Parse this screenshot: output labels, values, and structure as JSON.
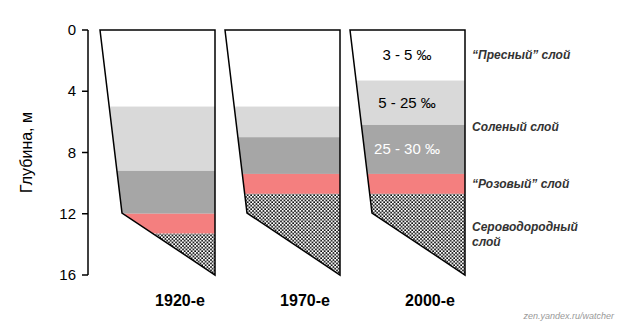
{
  "chart_data": {
    "type": "bar",
    "stacked": true,
    "categories": [
      "1920-е",
      "1970-е",
      "2000-е"
    ],
    "y_label": "Глубина, м",
    "ylim": [
      0,
      16
    ],
    "yticks": [
      0,
      4,
      8,
      12,
      16
    ],
    "source": "zen.yandex.ru/watcher",
    "series": [
      {
        "name": "“Пресный” слой",
        "color": "#ffffff",
        "values": [
          5.0,
          5.0,
          3.3
        ],
        "salinity": [
          null,
          null,
          "3 - 5 ‰"
        ]
      },
      {
        "name": "Соленый слой",
        "color": "#d9d9d9",
        "values": [
          4.2,
          2.0,
          2.9
        ],
        "salinity": [
          null,
          null,
          "5 - 25 ‰"
        ]
      },
      {
        "name": null,
        "color": "#a6a6a6",
        "values": [
          2.8,
          2.4,
          3.2
        ],
        "salinity": [
          null,
          null,
          "25 - 30 ‰"
        ]
      },
      {
        "name": "“Розовый” слой",
        "color": "#f47f7f",
        "values": [
          1.3,
          1.3,
          1.3
        ]
      },
      {
        "name": "Сероводородный слой",
        "color": "#000000",
        "marker": "dots",
        "values": [
          2.7,
          5.3,
          5.3
        ]
      }
    ]
  }
}
